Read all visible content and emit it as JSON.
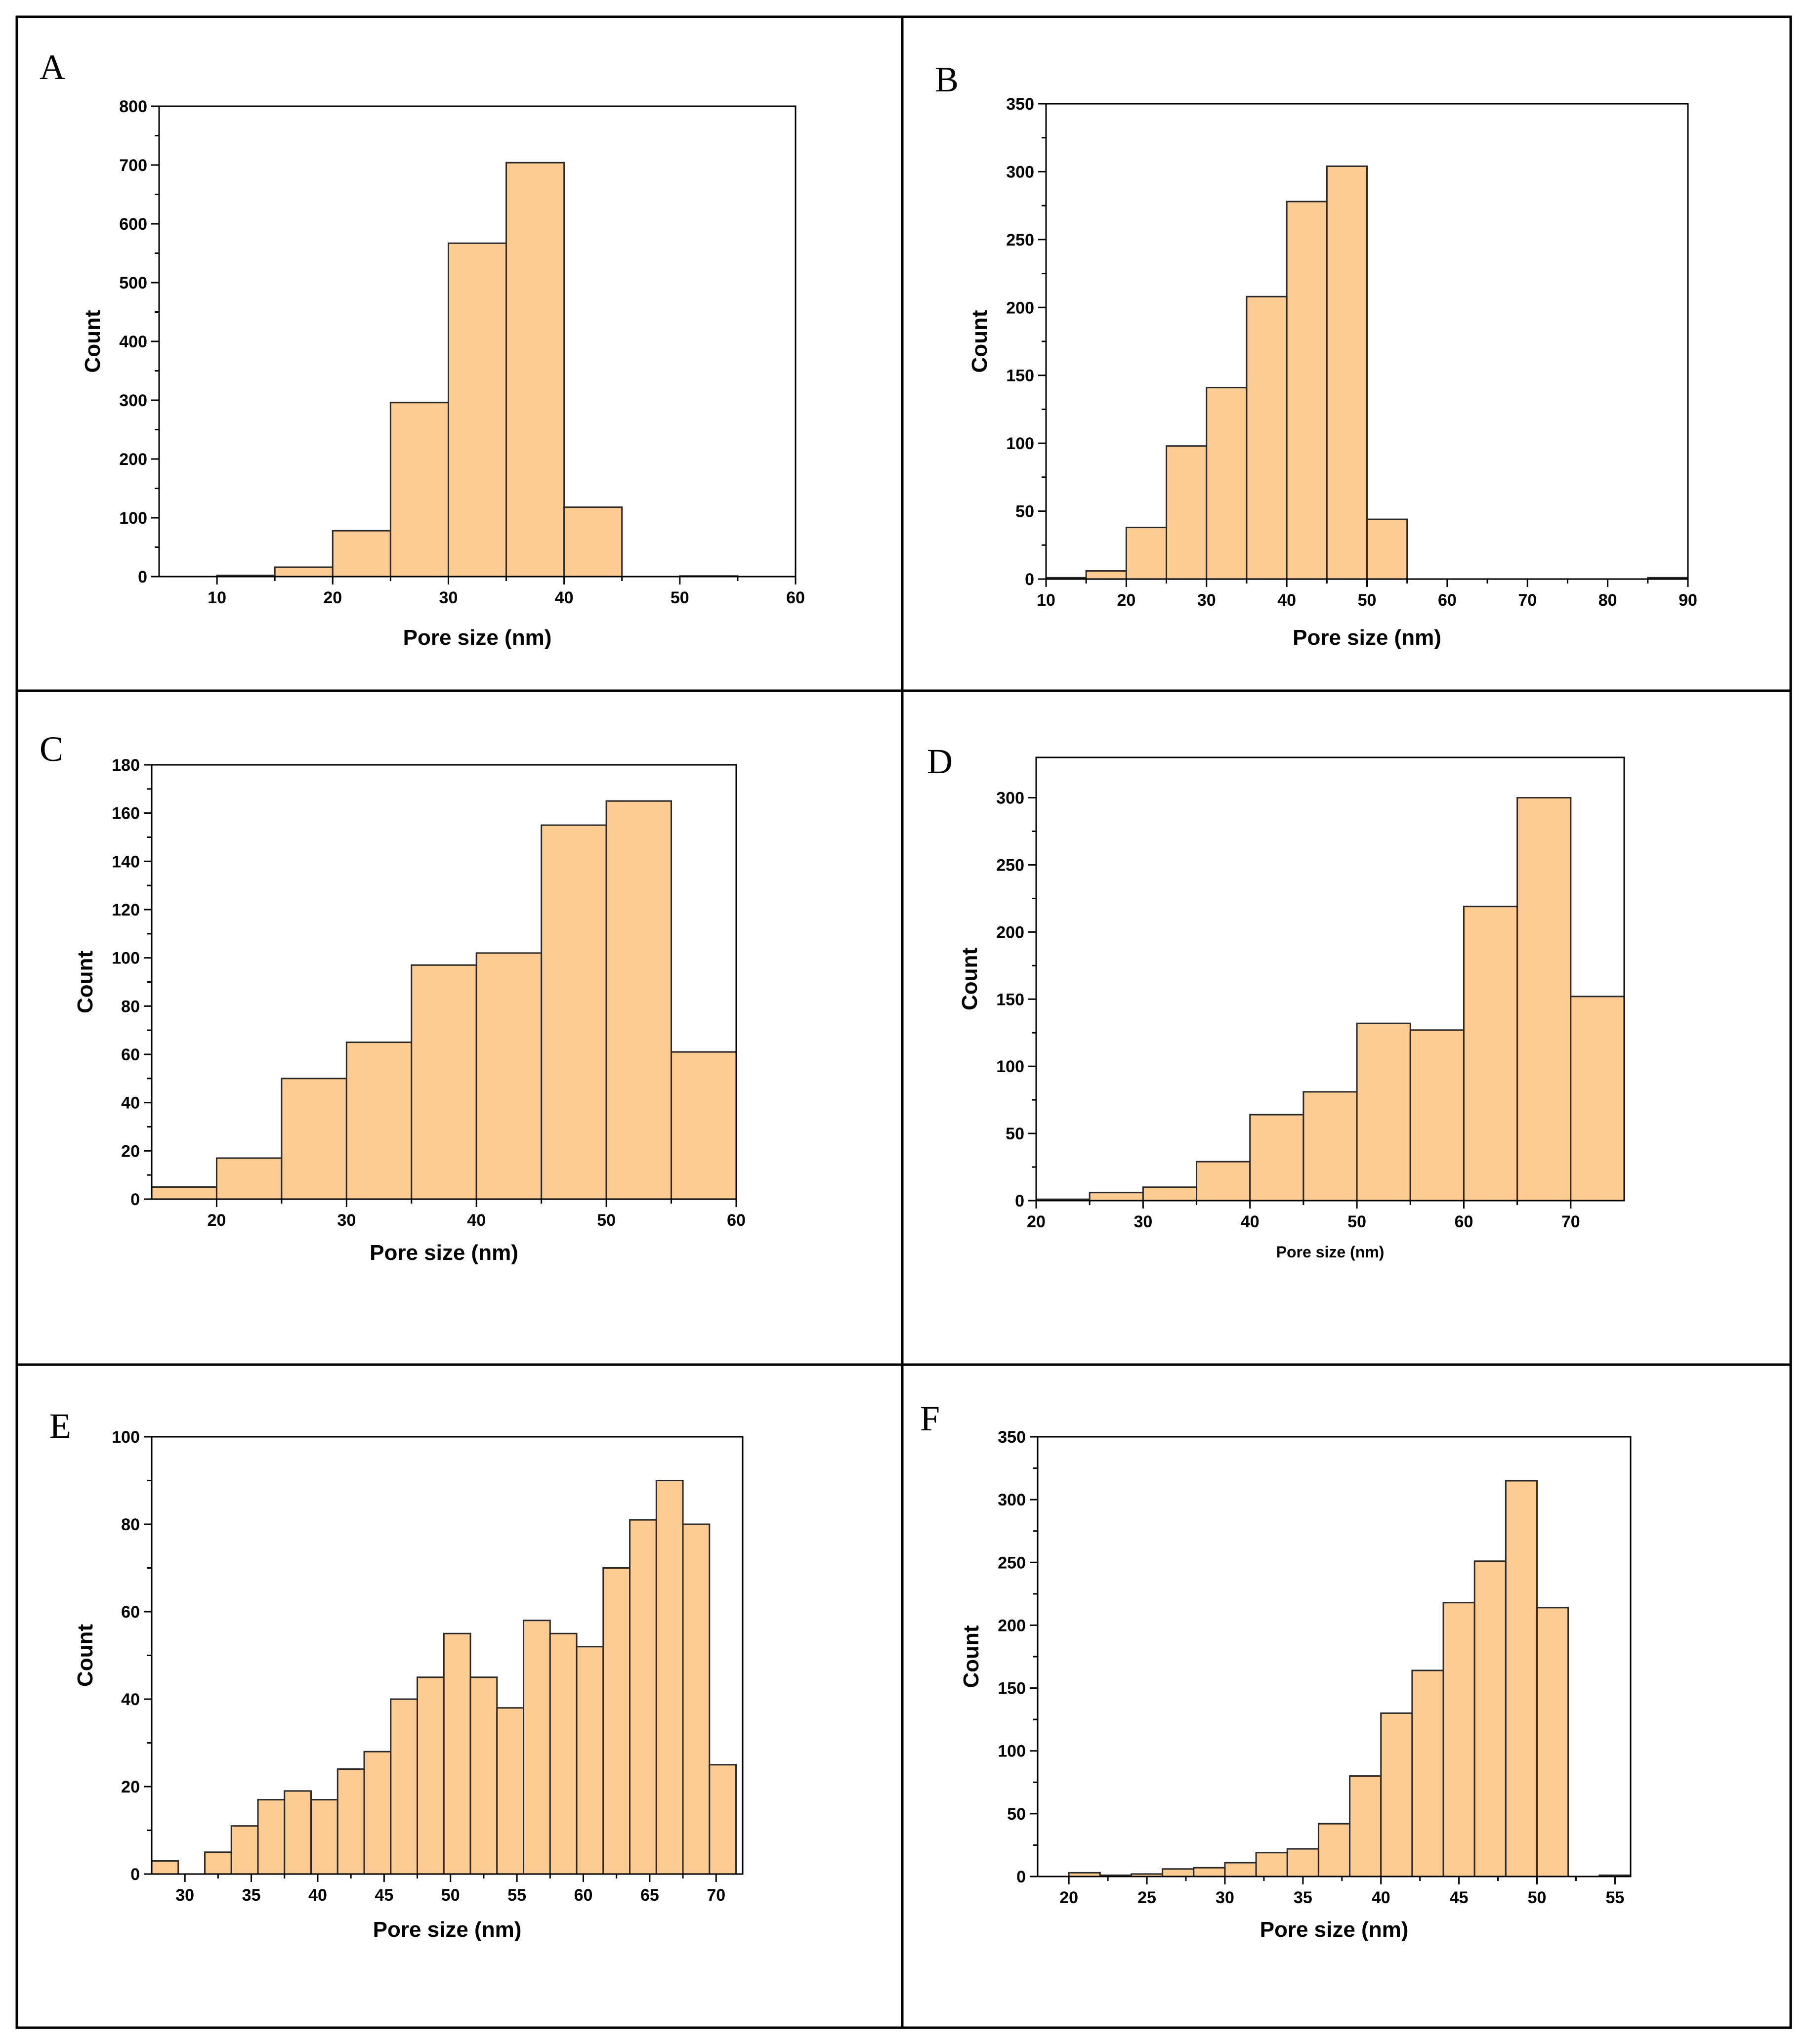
{
  "colors": {
    "bar_fill": "#FECC92",
    "bar_stroke": "#2a2a2a",
    "axis": "#000000",
    "background": "#ffffff"
  },
  "chart_data": [
    {
      "panel": "A",
      "type": "bar",
      "title": "",
      "xlabel": "Pore size (nm)",
      "ylabel": "Count",
      "xlim": [
        5,
        60
      ],
      "ylim": [
        0,
        800
      ],
      "xticks": [
        10,
        20,
        30,
        40,
        50,
        60
      ],
      "yticks": [
        0,
        100,
        200,
        300,
        400,
        500,
        600,
        700,
        800
      ],
      "bin_edges": [
        10,
        15,
        20,
        25,
        30,
        35,
        40,
        45,
        50,
        55,
        60
      ],
      "values": [
        2,
        16,
        78,
        296,
        567,
        704,
        118,
        0,
        1,
        0
      ]
    },
    {
      "panel": "B",
      "type": "bar",
      "title": "",
      "xlabel": "Pore size (nm)",
      "ylabel": "Count",
      "xlim": [
        10,
        90
      ],
      "ylim": [
        0,
        350
      ],
      "xticks": [
        10,
        20,
        30,
        40,
        50,
        60,
        70,
        80,
        90
      ],
      "yticks": [
        0,
        50,
        100,
        150,
        200,
        250,
        300,
        350
      ],
      "bin_edges": [
        10,
        15,
        20,
        25,
        30,
        35,
        40,
        45,
        50,
        55,
        60,
        65,
        70,
        75,
        80,
        85,
        90
      ],
      "values": [
        1,
        6,
        38,
        98,
        141,
        208,
        278,
        304,
        44,
        0,
        0,
        0,
        0,
        0,
        0,
        1
      ]
    },
    {
      "panel": "C",
      "type": "bar",
      "title": "",
      "xlabel": "Pore size (nm)",
      "ylabel": "Count",
      "xlim": [
        15,
        60
      ],
      "ylim": [
        0,
        180
      ],
      "xticks": [
        20,
        30,
        40,
        50,
        60
      ],
      "yticks": [
        0,
        20,
        40,
        60,
        80,
        100,
        120,
        140,
        160,
        180
      ],
      "bin_edges": [
        15,
        20,
        25,
        30,
        35,
        40,
        45,
        50,
        55,
        60
      ],
      "values": [
        5,
        17,
        50,
        65,
        97,
        102,
        155,
        165,
        61
      ]
    },
    {
      "panel": "D",
      "type": "bar",
      "title": "",
      "xlabel": "Pore size (nm)",
      "ylabel": "Count",
      "xlim": [
        20,
        75
      ],
      "ylim": [
        0,
        330
      ],
      "xticks": [
        20,
        30,
        40,
        50,
        60,
        70
      ],
      "yticks": [
        0,
        50,
        100,
        150,
        200,
        250,
        300
      ],
      "bin_edges": [
        20,
        25,
        30,
        35,
        40,
        45,
        50,
        55,
        60,
        65,
        70,
        75
      ],
      "values": [
        1,
        6,
        10,
        29,
        64,
        81,
        132,
        127,
        219,
        300,
        152
      ]
    },
    {
      "panel": "E",
      "type": "bar",
      "title": "",
      "xlabel": "Pore size (nm)",
      "ylabel": "Count",
      "xlim": [
        27.5,
        72
      ],
      "ylim": [
        0,
        100
      ],
      "xticks": [
        30,
        35,
        40,
        45,
        50,
        55,
        60,
        65,
        70
      ],
      "yticks": [
        0,
        20,
        40,
        60,
        80,
        100
      ],
      "bin_edges": [
        27.5,
        29.5,
        31.5,
        33.5,
        35.5,
        37.5,
        39.5,
        41.5,
        43.5,
        45.5,
        47.5,
        49.5,
        51.5,
        53.5,
        55.5,
        57.5,
        59.5,
        61.5,
        63.5,
        65.5,
        67.5,
        69.5,
        71.5
      ],
      "values": [
        3,
        0,
        5,
        11,
        17,
        19,
        17,
        24,
        28,
        40,
        45,
        55,
        45,
        38,
        58,
        55,
        52,
        70,
        81,
        90,
        80,
        25
      ]
    },
    {
      "panel": "F",
      "type": "bar",
      "title": "",
      "xlabel": "Pore size (nm)",
      "ylabel": "Count",
      "xlim": [
        18,
        56
      ],
      "ylim": [
        0,
        350
      ],
      "xticks": [
        20,
        25,
        30,
        35,
        40,
        45,
        50,
        55
      ],
      "yticks": [
        0,
        50,
        100,
        150,
        200,
        250,
        300,
        350
      ],
      "bin_edges": [
        20,
        22,
        24,
        26,
        28,
        30,
        32,
        34,
        36,
        38,
        40,
        42,
        44,
        46,
        48,
        50,
        52,
        54,
        56
      ],
      "values": [
        3,
        1,
        2,
        6,
        7,
        11,
        19,
        22,
        42,
        80,
        130,
        164,
        218,
        251,
        315,
        214,
        0,
        1
      ]
    }
  ]
}
